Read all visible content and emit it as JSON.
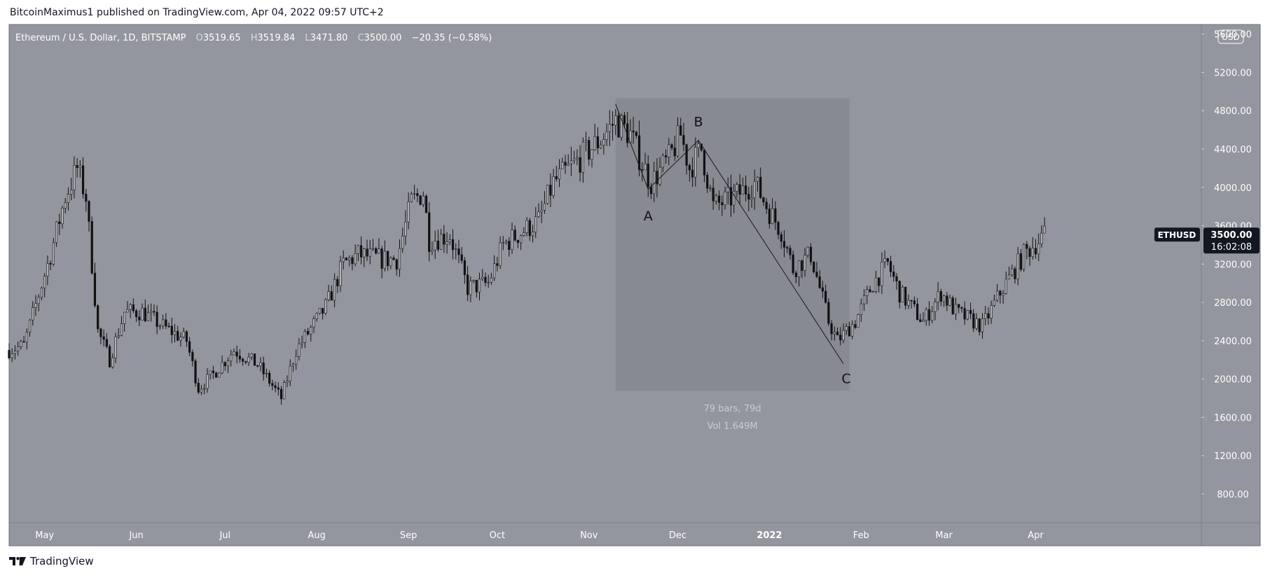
{
  "header": {
    "publish_line": "BitcoinMaximus1 published on TradingView.com, Apr 04, 2022 09:57 UTC+2"
  },
  "footer": {
    "brand": "TradingView"
  },
  "colors": {
    "background": "#93969e",
    "measure_box": "#888a91",
    "candle": "#111111",
    "text": "#ffffff",
    "label_bg": "#131722"
  },
  "chart_data": {
    "type": "candlestick",
    "symbol_line": {
      "name": "Ethereum / U.S. Dollar, 1D, BITSTAMP",
      "o_label": "O",
      "o": "3519.65",
      "h_label": "H",
      "h": "3519.84",
      "l_label": "L",
      "l": "3471.80",
      "c_label": "C",
      "c": "3500.00",
      "change": "−20.35 (−0.58%)"
    },
    "currency_button": "USD",
    "y_ticks": [
      {
        "label": "5600.00",
        "value": 5600
      },
      {
        "label": "5200.00",
        "value": 5200
      },
      {
        "label": "4800.00",
        "value": 4800
      },
      {
        "label": "4400.00",
        "value": 4400
      },
      {
        "label": "4000.00",
        "value": 4000
      },
      {
        "label": "3600.00",
        "value": 3600
      },
      {
        "label": "3200.00",
        "value": 3200
      },
      {
        "label": "2800.00",
        "value": 2800
      },
      {
        "label": "2400.00",
        "value": 2400
      },
      {
        "label": "2000.00",
        "value": 2000
      },
      {
        "label": "1600.00",
        "value": 1600
      },
      {
        "label": "1200.00",
        "value": 1200
      },
      {
        "label": "800.00",
        "value": 800
      }
    ],
    "ylim": [
      500,
      5700
    ],
    "x_labels": [
      {
        "label": "May",
        "date": "2021-05-01",
        "bold": false
      },
      {
        "label": "Jun",
        "date": "2021-06-01",
        "bold": false
      },
      {
        "label": "Jul",
        "date": "2021-07-01",
        "bold": false
      },
      {
        "label": "Aug",
        "date": "2021-08-01",
        "bold": false
      },
      {
        "label": "Sep",
        "date": "2021-09-01",
        "bold": false
      },
      {
        "label": "Oct",
        "date": "2021-10-01",
        "bold": false
      },
      {
        "label": "Nov",
        "date": "2021-11-01",
        "bold": false
      },
      {
        "label": "Dec",
        "date": "2021-12-01",
        "bold": false
      },
      {
        "label": "2022",
        "date": "2022-01-01",
        "bold": true
      },
      {
        "label": "Feb",
        "date": "2022-02-01",
        "bold": false
      },
      {
        "label": "Mar",
        "date": "2022-03-01",
        "bold": false
      },
      {
        "label": "Apr",
        "date": "2022-04-01",
        "bold": false
      }
    ],
    "xlim": [
      "2021-04-19",
      "2022-05-27"
    ],
    "price_keypoints": [
      [
        "2021-04-19",
        2300
      ],
      [
        "2021-04-24",
        2350
      ],
      [
        "2021-05-03",
        3300
      ],
      [
        "2021-05-08",
        3900
      ],
      [
        "2021-05-12",
        4200
      ],
      [
        "2021-05-15",
        3900
      ],
      [
        "2021-05-19",
        2500
      ],
      [
        "2021-05-23",
        2200
      ],
      [
        "2021-05-28",
        2700
      ],
      [
        "2021-06-03",
        2700
      ],
      [
        "2021-06-10",
        2550
      ],
      [
        "2021-06-18",
        2400
      ],
      [
        "2021-06-22",
        1900
      ],
      [
        "2021-06-27",
        2050
      ],
      [
        "2021-07-04",
        2300
      ],
      [
        "2021-07-12",
        2150
      ],
      [
        "2021-07-20",
        1800
      ],
      [
        "2021-07-25",
        2300
      ],
      [
        "2021-08-04",
        2750
      ],
      [
        "2021-08-10",
        3200
      ],
      [
        "2021-08-15",
        3300
      ],
      [
        "2021-08-23",
        3250
      ],
      [
        "2021-08-28",
        3250
      ],
      [
        "2021-09-02",
        3850
      ],
      [
        "2021-09-06",
        3950
      ],
      [
        "2021-09-08",
        3450
      ],
      [
        "2021-09-15",
        3500
      ],
      [
        "2021-09-21",
        2950
      ],
      [
        "2021-09-28",
        3000
      ],
      [
        "2021-10-03",
        3400
      ],
      [
        "2021-10-10",
        3550
      ],
      [
        "2021-10-15",
        3650
      ],
      [
        "2021-10-20",
        4050
      ],
      [
        "2021-10-29",
        4300
      ],
      [
        "2021-11-05",
        4500
      ],
      [
        "2021-11-10",
        4700
      ],
      [
        "2021-11-15",
        4550
      ],
      [
        "2021-11-19",
        4250
      ],
      [
        "2021-11-22",
        4050
      ],
      [
        "2021-11-28",
        4300
      ],
      [
        "2021-12-02",
        4550
      ],
      [
        "2021-12-05",
        4200
      ],
      [
        "2021-12-09",
        4400
      ],
      [
        "2021-12-13",
        3800
      ],
      [
        "2021-12-20",
        3900
      ],
      [
        "2021-12-27",
        4050
      ],
      [
        "2022-01-01",
        3750
      ],
      [
        "2022-01-05",
        3550
      ],
      [
        "2022-01-09",
        3150
      ],
      [
        "2022-01-15",
        3300
      ],
      [
        "2022-01-21",
        2600
      ],
      [
        "2022-01-24",
        2400
      ],
      [
        "2022-01-30",
        2600
      ],
      [
        "2022-02-05",
        3000
      ],
      [
        "2022-02-10",
        3200
      ],
      [
        "2022-02-14",
        2900
      ],
      [
        "2022-02-22",
        2600
      ],
      [
        "2022-02-28",
        2900
      ],
      [
        "2022-03-05",
        2700
      ],
      [
        "2022-03-14",
        2550
      ],
      [
        "2022-03-20",
        2900
      ],
      [
        "2022-03-28",
        3300
      ],
      [
        "2022-04-04",
        3500
      ]
    ],
    "measure_box": {
      "from": "2021-11-10",
      "to": "2022-01-28",
      "top": 4930,
      "bottom": 1880,
      "label1": "79 bars, 79d",
      "label2": "Vol 1.649M"
    },
    "wave_lines": [
      {
        "points": [
          [
            "2021-11-10",
            4870
          ],
          [
            "2021-11-21",
            3980
          ],
          [
            "2021-12-08",
            4490
          ],
          [
            "2022-01-26",
            2160
          ]
        ]
      }
    ],
    "wave_labels": [
      {
        "text": "A",
        "date": "2021-11-21",
        "price": 3890,
        "pos": "below"
      },
      {
        "text": "B",
        "date": "2021-12-08",
        "price": 4490,
        "pos": "above"
      },
      {
        "text": "C",
        "date": "2022-01-26",
        "price": 2160,
        "pos": "below-right"
      }
    ],
    "last_price": {
      "symbol": "ETHUSD",
      "price_label": "3500.00",
      "value": 3500,
      "countdown": "16:02:08"
    }
  }
}
